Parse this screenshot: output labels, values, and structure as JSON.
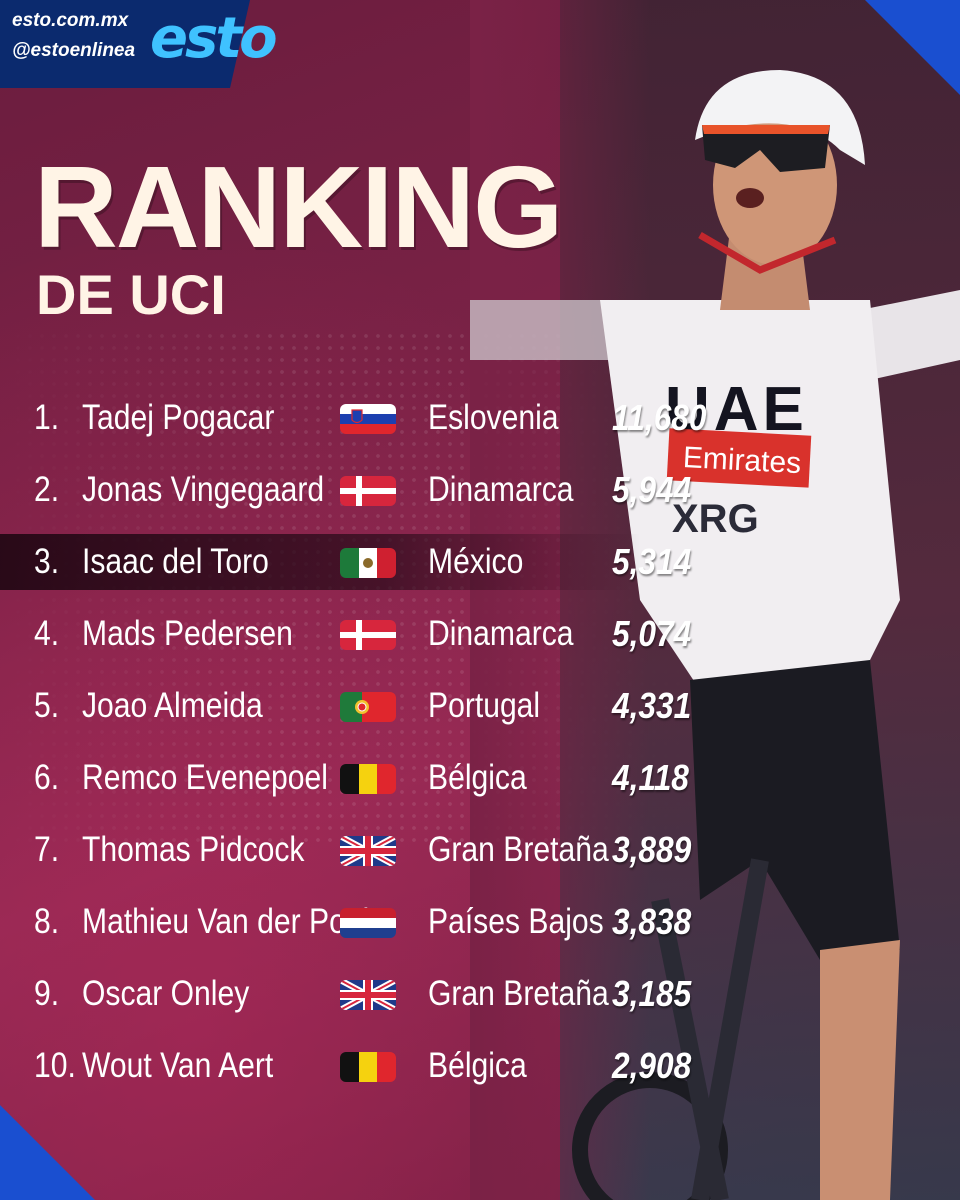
{
  "brand": {
    "url": "esto.com.mx",
    "handle": "@estoenlinea",
    "logo": "esto",
    "logo_color": "#3fc2ff"
  },
  "header": {
    "title": "RANKING",
    "subtitle": "DE UCI"
  },
  "ranking": [
    {
      "rank": "1.",
      "name": "Tadej Pogacar",
      "flag": "slovenia-flag",
      "country": "Eslovenia",
      "points": "11,680"
    },
    {
      "rank": "2.",
      "name": "Jonas Vingegaard",
      "flag": "denmark-flag",
      "country": "Dinamarca",
      "points": "5,944"
    },
    {
      "rank": "3.",
      "name": "Isaac del Toro",
      "flag": "mexico-flag",
      "country": "México",
      "points": "5,314",
      "highlighted": true
    },
    {
      "rank": "4.",
      "name": "Mads Pedersen",
      "flag": "denmark-flag",
      "country": "Dinamarca",
      "points": "5,074"
    },
    {
      "rank": "5.",
      "name": "Joao Almeida",
      "flag": "portugal-flag",
      "country": "Portugal",
      "points": "4,331"
    },
    {
      "rank": "6.",
      "name": "Remco Evenepoel",
      "flag": "belgium-flag",
      "country": "Bélgica",
      "points": "4,118"
    },
    {
      "rank": "7.",
      "name": "Thomas Pidcock",
      "flag": "uk-flag",
      "country": "Gran Bretaña",
      "points": "3,889"
    },
    {
      "rank": "8.",
      "name": "Mathieu Van der Poel",
      "flag": "netherlands-flag",
      "country": "Países Bajos",
      "points": "3,838"
    },
    {
      "rank": "9.",
      "name": "Oscar Onley",
      "flag": "uk-flag",
      "country": "Gran Bretaña",
      "points": "3,185"
    },
    {
      "rank": "10.",
      "name": "Wout Van Aert",
      "flag": "belgium-flag",
      "country": "Bélgica",
      "points": "2,908"
    }
  ],
  "jersey": {
    "team": "UAE",
    "sponsor": "Emirates",
    "sub": "XRG"
  },
  "colors": {
    "background": "#7a2246",
    "accent_blue": "#1a4fd0",
    "title": "#fff4e6"
  }
}
